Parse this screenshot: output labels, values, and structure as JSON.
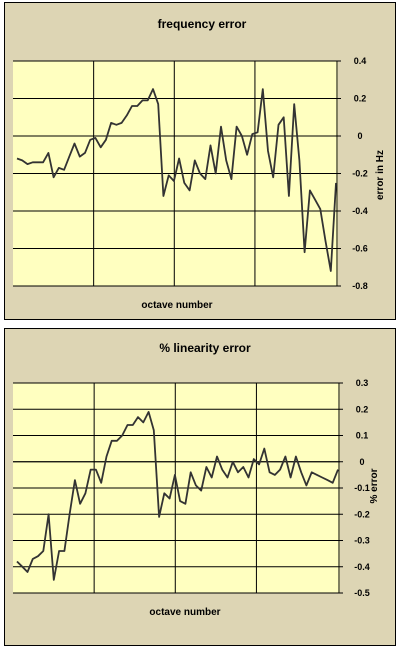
{
  "colors": {
    "panel_bg": "#ddd5b4",
    "plot_bg": "#ffffc0",
    "line": "#333333",
    "grid": "#000000"
  },
  "chart_data": [
    {
      "type": "line",
      "title": "frequency error",
      "xlabel": "octave number",
      "ylabel": "error in Hz",
      "ylim": [
        -0.8,
        0.4
      ],
      "yticks": [
        0.4,
        0.2,
        0,
        -0.2,
        -0.4,
        -0.6,
        -0.8
      ],
      "ytick_labels": [
        "0.4",
        "0.2",
        "0",
        "-0.2",
        "-0.4",
        "-0.6",
        "-0.8"
      ],
      "x_gridlines": 4,
      "grid": true,
      "series": [
        {
          "values": [
            -0.12,
            -0.13,
            -0.15,
            -0.14,
            -0.14,
            -0.14,
            -0.09,
            -0.22,
            -0.17,
            -0.18,
            -0.11,
            -0.04,
            -0.11,
            -0.09,
            -0.02,
            -0.01,
            -0.06,
            -0.02,
            0.07,
            0.06,
            0.07,
            0.11,
            0.16,
            0.16,
            0.19,
            0.19,
            0.25,
            0.17,
            -0.32,
            -0.21,
            -0.24,
            -0.12,
            -0.25,
            -0.29,
            -0.13,
            -0.2,
            -0.23,
            -0.05,
            -0.2,
            0.05,
            -0.13,
            -0.23,
            0.05,
            0,
            -0.1,
            0.01,
            0.02,
            0.25,
            -0.08,
            -0.22,
            0.06,
            0.1,
            -0.32,
            0.17,
            -0.13,
            -0.62,
            -0.29,
            -0.34,
            -0.39,
            -0.56,
            -0.72,
            -0.25
          ]
        }
      ]
    },
    {
      "type": "line",
      "title": "%  linearity error",
      "xlabel": "octave number",
      "ylabel": "% error",
      "ylim": [
        -0.5,
        0.3
      ],
      "yticks": [
        0.3,
        0.2,
        0.1,
        0,
        -0.1,
        -0.2,
        -0.3,
        -0.4,
        -0.5
      ],
      "ytick_labels": [
        "0.3",
        "0.2",
        "0.1",
        "0",
        "-0.1",
        "-0.2",
        "-0.3",
        "-0.4",
        "-0.5"
      ],
      "x_gridlines": 4,
      "grid": true,
      "series": [
        {
          "values": [
            -0.38,
            -0.4,
            -0.42,
            -0.37,
            -0.36,
            -0.34,
            -0.2,
            -0.45,
            -0.34,
            -0.34,
            -0.2,
            -0.07,
            -0.16,
            -0.12,
            -0.03,
            -0.03,
            -0.08,
            0.02,
            0.08,
            0.08,
            0.1,
            0.14,
            0.14,
            0.17,
            0.15,
            0.19,
            0.12,
            -0.21,
            -0.12,
            -0.14,
            -0.05,
            -0.15,
            -0.16,
            -0.04,
            -0.09,
            -0.11,
            -0.02,
            -0.06,
            0.02,
            -0.03,
            -0.06,
            0,
            -0.04,
            -0.02,
            -0.06,
            0.01,
            -0.01,
            0.05,
            -0.04,
            -0.05,
            -0.03,
            0.02,
            -0.06,
            0.02,
            -0.04,
            -0.09,
            -0.04,
            -0.05,
            -0.06,
            -0.07,
            -0.08,
            -0.03
          ]
        }
      ]
    }
  ]
}
